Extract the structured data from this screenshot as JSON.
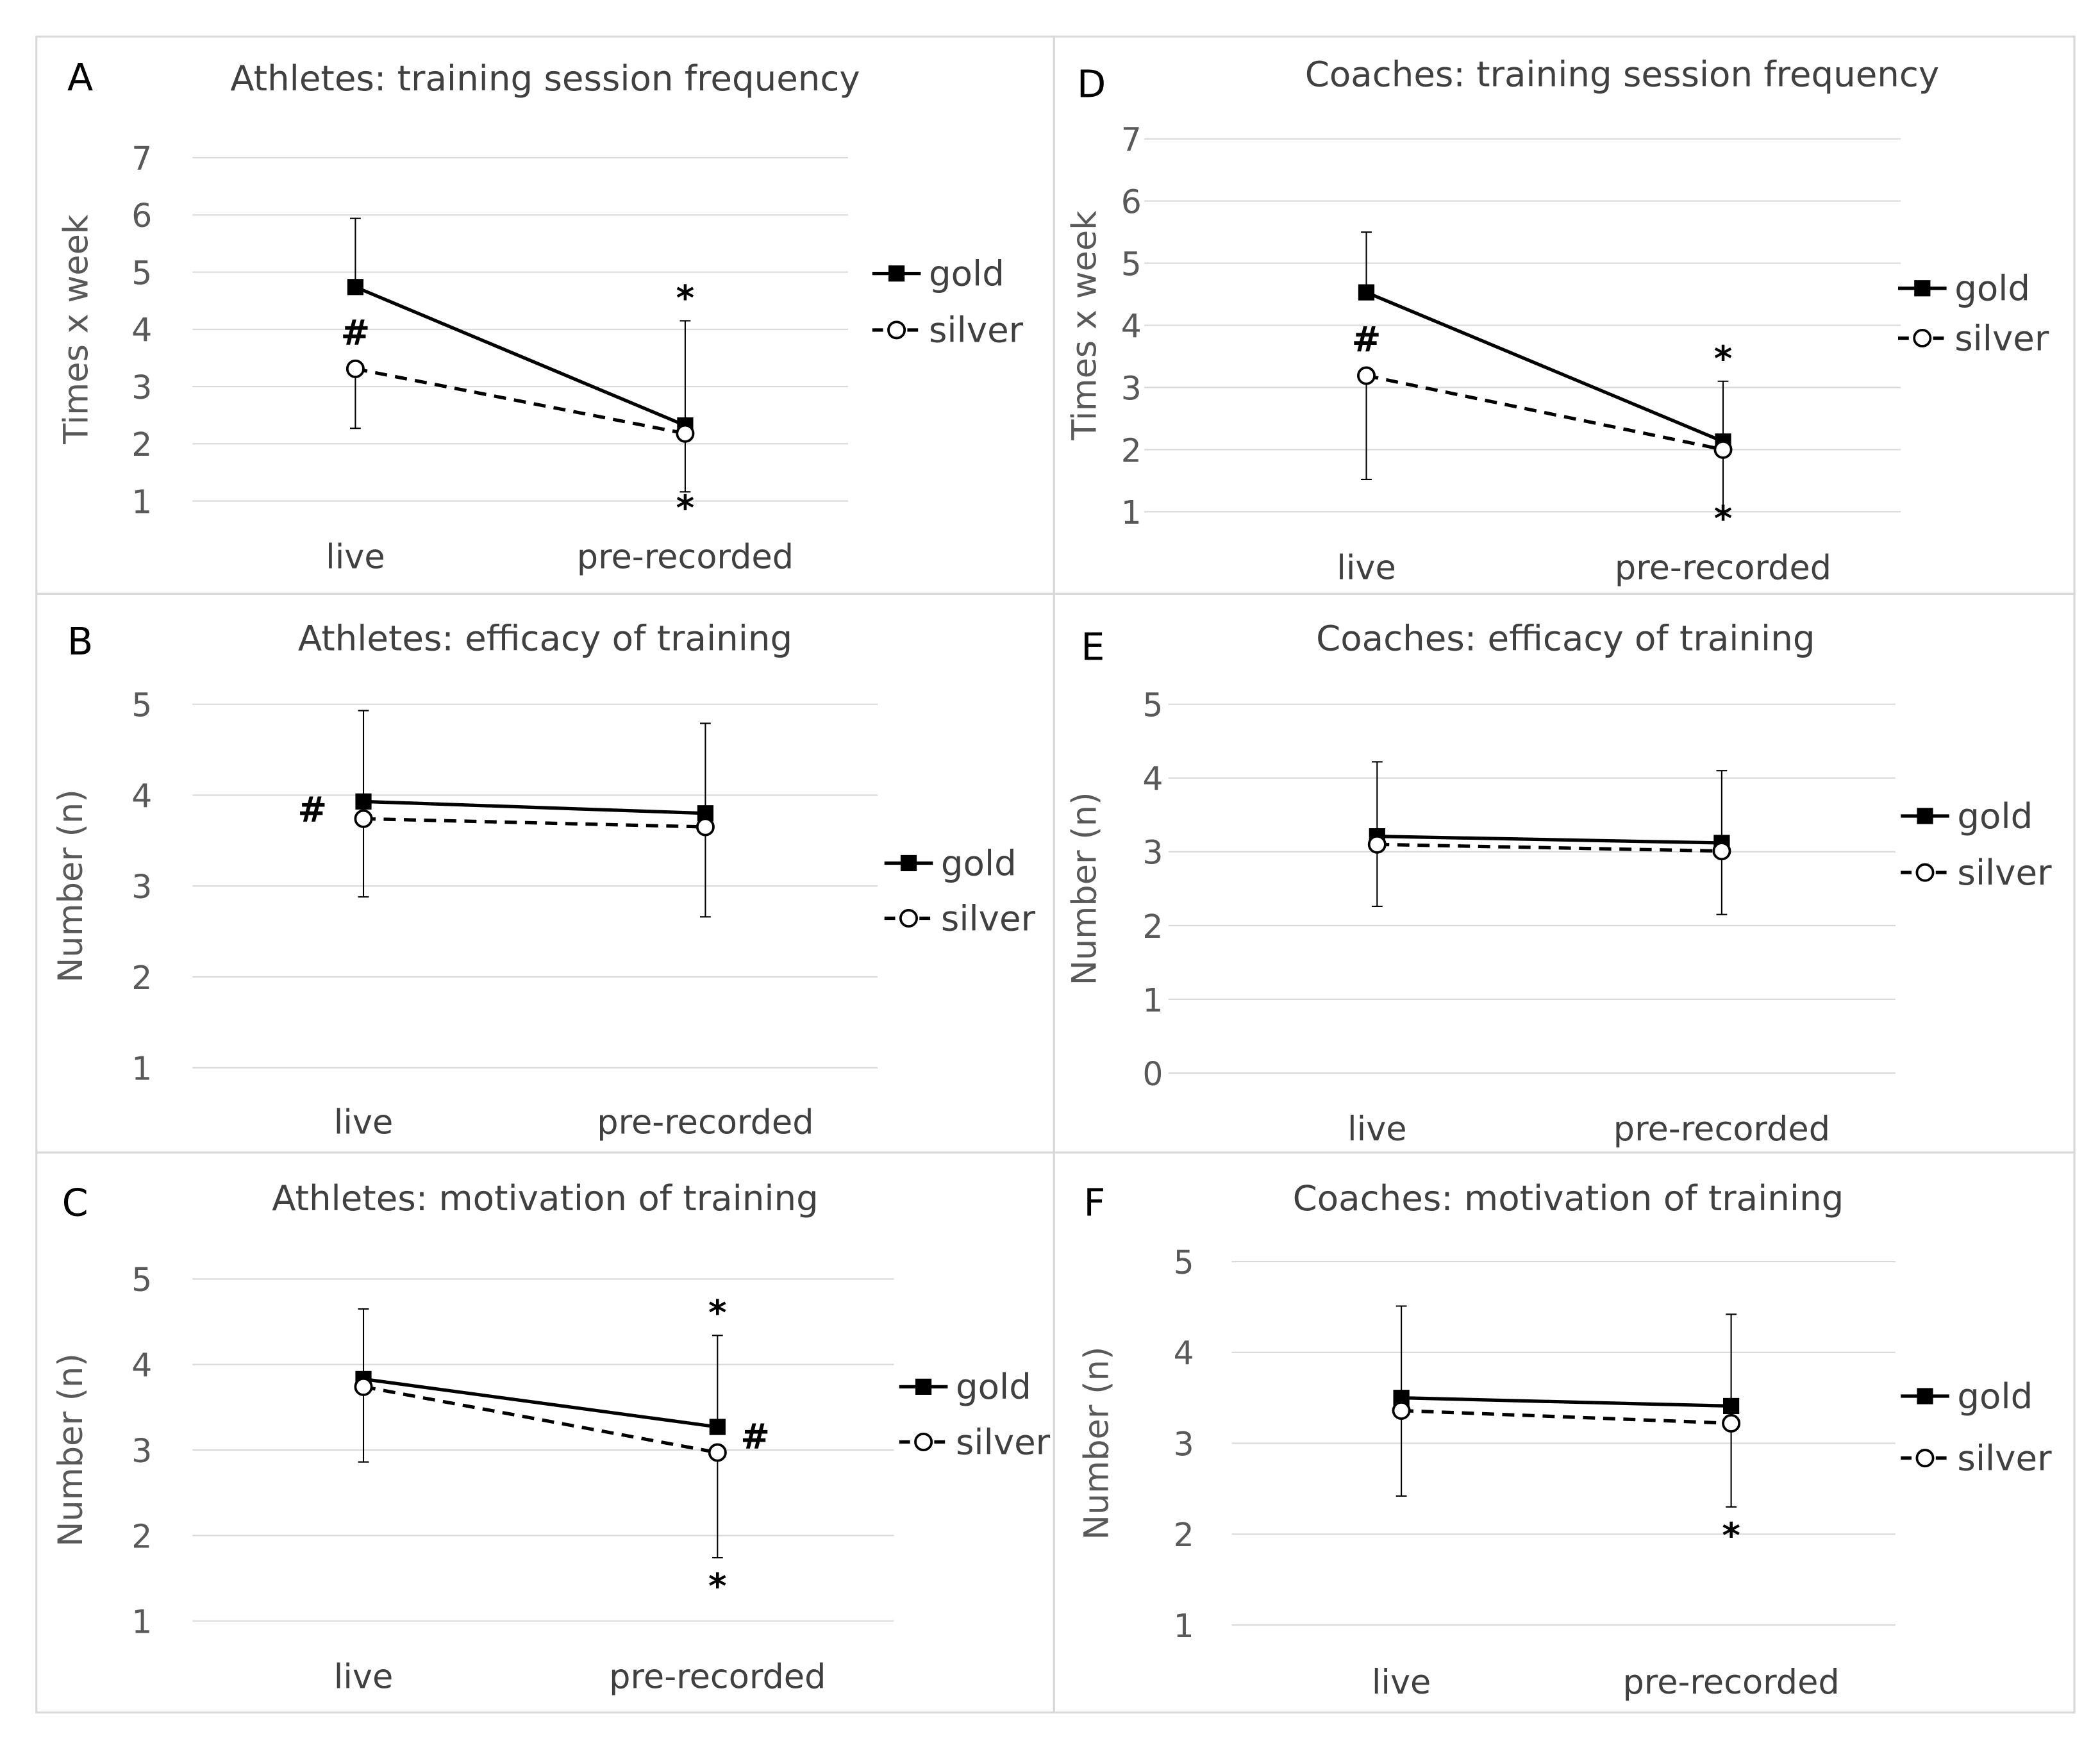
{
  "chart_data": [
    {
      "id": "A",
      "type": "line",
      "title": "Athletes: training session frequency",
      "ylabel": "Times x week",
      "ylim": [
        1,
        7
      ],
      "yticks": [
        1,
        2,
        3,
        4,
        5,
        6,
        7
      ],
      "categories": [
        "live",
        "pre-recorded"
      ],
      "series": [
        {
          "name": "gold",
          "marker": "filled-square",
          "dash": false,
          "values": [
            4.74,
            2.32
          ],
          "error_dir": "up",
          "errors": [
            5.94,
            4.15
          ]
        },
        {
          "name": "silver",
          "marker": "open-circle",
          "dash": true,
          "values": [
            3.31,
            2.18
          ],
          "error_dir": "down",
          "errors": [
            2.27,
            1.16
          ]
        }
      ],
      "annotations": [
        {
          "text": "#",
          "category": 0,
          "pos": "above-silver"
        },
        {
          "text": "*",
          "category": 1,
          "pos": "above"
        },
        {
          "text": "*",
          "category": 1,
          "pos": "below"
        }
      ]
    },
    {
      "id": "B",
      "type": "line",
      "title": "Athletes: efficacy of training",
      "ylabel": "Number (n)",
      "ylim": [
        1,
        5
      ],
      "yticks": [
        1,
        2,
        3,
        4,
        5
      ],
      "categories": [
        "live",
        "pre-recorded"
      ],
      "series": [
        {
          "name": "gold",
          "marker": "filled-square",
          "dash": false,
          "values": [
            3.93,
            3.8
          ],
          "error_dir": "up",
          "errors": [
            4.93,
            4.79
          ]
        },
        {
          "name": "silver",
          "marker": "open-circle",
          "dash": true,
          "values": [
            3.74,
            3.65
          ],
          "error_dir": "down",
          "errors": [
            2.88,
            2.66
          ]
        }
      ],
      "annotations": [
        {
          "text": "#",
          "category": 0,
          "pos": "left"
        }
      ]
    },
    {
      "id": "C",
      "type": "line",
      "title": "Athletes: motivation of training",
      "ylabel": "Number (n)",
      "ylim": [
        1,
        5
      ],
      "yticks": [
        1,
        2,
        3,
        4,
        5
      ],
      "categories": [
        "live",
        "pre-recorded"
      ],
      "series": [
        {
          "name": "gold",
          "marker": "filled-square",
          "dash": false,
          "values": [
            3.83,
            3.27
          ],
          "error_dir": "up",
          "errors": [
            4.65,
            4.34
          ]
        },
        {
          "name": "silver",
          "marker": "open-circle",
          "dash": true,
          "values": [
            3.74,
            2.97
          ],
          "error_dir": "down",
          "errors": [
            2.86,
            1.74
          ]
        }
      ],
      "annotations": [
        {
          "text": "*",
          "category": 1,
          "pos": "above"
        },
        {
          "text": "*",
          "category": 1,
          "pos": "below"
        },
        {
          "text": "#",
          "category": 1,
          "pos": "right"
        }
      ]
    },
    {
      "id": "D",
      "type": "line",
      "title": "Coaches: training session frequency",
      "ylabel": "Times x week",
      "ylim": [
        1,
        7
      ],
      "yticks": [
        1,
        2,
        3,
        4,
        5,
        6,
        7
      ],
      "categories": [
        "live",
        "pre-recorded"
      ],
      "series": [
        {
          "name": "gold",
          "marker": "filled-square",
          "dash": false,
          "values": [
            4.53,
            2.13
          ],
          "error_dir": "up",
          "errors": [
            5.5,
            3.1
          ]
        },
        {
          "name": "silver",
          "marker": "open-circle",
          "dash": true,
          "values": [
            3.19,
            2.0
          ],
          "error_dir": "down",
          "errors": [
            1.52,
            1.0
          ]
        }
      ],
      "annotations": [
        {
          "text": "#",
          "category": 0,
          "pos": "above-silver"
        },
        {
          "text": "*",
          "category": 1,
          "pos": "above"
        },
        {
          "text": "*",
          "category": 1,
          "pos": "below"
        }
      ]
    },
    {
      "id": "E",
      "type": "line",
      "title": "Coaches: efficacy of training",
      "ylabel": "Number (n)",
      "ylim": [
        0,
        5
      ],
      "yticks": [
        0,
        1,
        2,
        3,
        4,
        5
      ],
      "categories": [
        "live",
        "pre-recorded"
      ],
      "series": [
        {
          "name": "gold",
          "marker": "filled-square",
          "dash": false,
          "values": [
            3.21,
            3.12
          ],
          "error_dir": "up",
          "errors": [
            4.22,
            4.1
          ]
        },
        {
          "name": "silver",
          "marker": "open-circle",
          "dash": true,
          "values": [
            3.1,
            3.01
          ],
          "error_dir": "down",
          "errors": [
            2.26,
            2.15
          ]
        }
      ],
      "annotations": []
    },
    {
      "id": "F",
      "type": "line",
      "title": "Coaches: motivation of training",
      "ylabel": "Number (n)",
      "ylim": [
        1,
        5
      ],
      "yticks": [
        1,
        2,
        3,
        4,
        5
      ],
      "categories": [
        "live",
        "pre-recorded"
      ],
      "series": [
        {
          "name": "gold",
          "marker": "filled-square",
          "dash": false,
          "values": [
            3.5,
            3.41
          ],
          "error_dir": "up",
          "errors": [
            4.51,
            4.42
          ]
        },
        {
          "name": "silver",
          "marker": "open-circle",
          "dash": true,
          "values": [
            3.36,
            3.22
          ],
          "error_dir": "down",
          "errors": [
            2.42,
            2.3
          ]
        }
      ],
      "annotations": [
        {
          "text": "*",
          "category": 1,
          "pos": "below"
        }
      ]
    }
  ]
}
